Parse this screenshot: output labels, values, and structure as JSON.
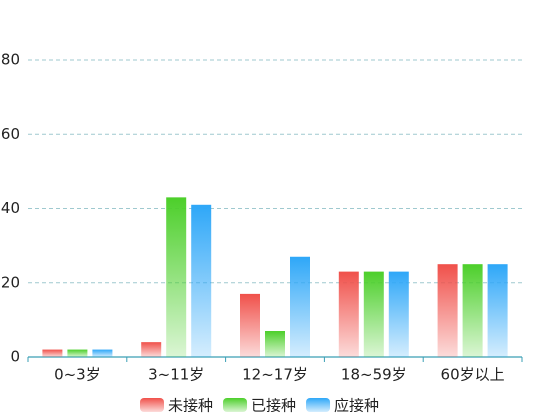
{
  "chart_data": {
    "type": "bar",
    "categories": [
      "0~3岁",
      "3~11岁",
      "12~17岁",
      "18~59岁",
      "60岁以上"
    ],
    "series": [
      {
        "name": "未接种",
        "color": "#f0504a",
        "values": [
          2,
          4,
          17,
          23,
          25
        ]
      },
      {
        "name": "已接种",
        "color": "#4ccf2a",
        "values": [
          2,
          43,
          7,
          23,
          25
        ]
      },
      {
        "name": "应接种",
        "color": "#2ea7f8",
        "values": [
          2,
          41,
          27,
          23,
          25
        ]
      }
    ],
    "ylim": [
      0,
      80
    ],
    "yticks": [
      0,
      20,
      40,
      60,
      80
    ],
    "grid": true
  }
}
